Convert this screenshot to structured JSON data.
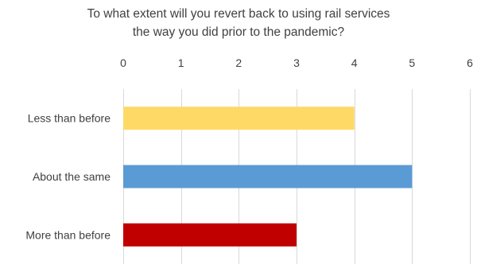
{
  "chart_data": {
    "type": "bar",
    "orientation": "horizontal",
    "title_lines": [
      "To what extent will you revert back to using rail services",
      "the way you did prior to the pandemic?"
    ],
    "categories": [
      "Less than before",
      "About the same",
      "More than before"
    ],
    "values": [
      4,
      5,
      3
    ],
    "colors": [
      "#FFD966",
      "#5B9BD5",
      "#C00000"
    ],
    "xlim": [
      0,
      6
    ],
    "xticks": [
      "0",
      "1",
      "2",
      "3",
      "4",
      "5",
      "6"
    ],
    "xaxis_position": "top",
    "grid": true,
    "legend": false
  }
}
